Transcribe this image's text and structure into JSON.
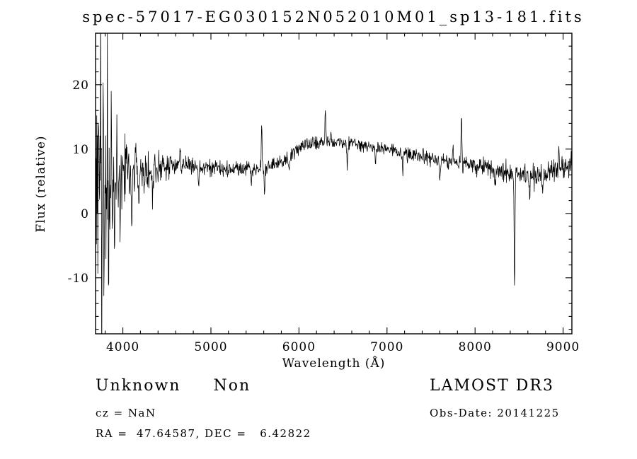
{
  "chart_data": {
    "type": "line",
    "title": "spec-57017-EG030152N052010M01_sp13-181.fits",
    "xlabel": "Wavelength (Å)",
    "ylabel": "Flux (relative)",
    "xlim": [
      3690,
      9100
    ],
    "ylim": [
      -18.7,
      28
    ],
    "x_major_ticks": [
      4000,
      5000,
      6000,
      7000,
      8000,
      9000
    ],
    "x_minor_step": 200,
    "y_major_ticks": [
      -10,
      0,
      10,
      20
    ],
    "y_minor_step": 2,
    "grid": false,
    "legend": "none",
    "line_color": "#000000",
    "series": [
      {
        "name": "spectrum",
        "color": "#000000",
        "continuum_anchors": [
          [
            3690,
            1
          ],
          [
            3720,
            4
          ],
          [
            3760,
            7
          ],
          [
            3800,
            7
          ],
          [
            3850,
            5
          ],
          [
            3900,
            5
          ],
          [
            3950,
            5.5
          ],
          [
            4000,
            5.5
          ],
          [
            4100,
            6
          ],
          [
            4250,
            6.5
          ],
          [
            4400,
            7
          ],
          [
            4600,
            7.5
          ],
          [
            4800,
            7.5
          ],
          [
            5000,
            7
          ],
          [
            5200,
            6.8
          ],
          [
            5400,
            7
          ],
          [
            5600,
            7
          ],
          [
            5800,
            7.8
          ],
          [
            5950,
            9.5
          ],
          [
            6100,
            10.8
          ],
          [
            6250,
            11
          ],
          [
            6450,
            11
          ],
          [
            6600,
            10.8
          ],
          [
            6800,
            10.3
          ],
          [
            7000,
            10
          ],
          [
            7200,
            9.3
          ],
          [
            7400,
            8.8
          ],
          [
            7600,
            8.3
          ],
          [
            7800,
            8
          ],
          [
            8000,
            7.3
          ],
          [
            8200,
            7
          ],
          [
            8400,
            6.5
          ],
          [
            8600,
            5.8
          ],
          [
            8750,
            5.5
          ],
          [
            8900,
            6.8
          ],
          [
            9100,
            7.8
          ]
        ],
        "noise_amplitude_anchors": [
          [
            3690,
            15
          ],
          [
            3750,
            16
          ],
          [
            3800,
            14
          ],
          [
            3860,
            11
          ],
          [
            3920,
            8
          ],
          [
            3980,
            6
          ],
          [
            4050,
            4.5
          ],
          [
            4150,
            3
          ],
          [
            4300,
            2.2
          ],
          [
            4500,
            1.6
          ],
          [
            4800,
            1.3
          ],
          [
            5200,
            1.2
          ],
          [
            5600,
            1.1
          ],
          [
            6000,
            1.0
          ],
          [
            6500,
            0.9
          ],
          [
            7000,
            0.85
          ],
          [
            7400,
            1.0
          ],
          [
            7800,
            1.1
          ],
          [
            8200,
            1.3
          ],
          [
            8600,
            1.6
          ],
          [
            8900,
            1.9
          ],
          [
            9100,
            2.3
          ]
        ],
        "spikes": [
          {
            "wavelength": 3728,
            "delta_flux": 12
          },
          {
            "wavelength": 3745,
            "delta_flux": 18
          },
          {
            "wavelength": 3762,
            "delta_flux": -22
          },
          {
            "wavelength": 3775,
            "delta_flux": 20
          },
          {
            "wavelength": 3790,
            "delta_flux": -16
          },
          {
            "wavelength": 3820,
            "delta_flux": 11
          },
          {
            "wavelength": 3840,
            "delta_flux": -12
          },
          {
            "wavelength": 3870,
            "delta_flux": 13
          },
          {
            "wavelength": 3905,
            "delta_flux": -10
          },
          {
            "wavelength": 3935,
            "delta_flux": 9
          },
          {
            "wavelength": 3968,
            "delta_flux": -9
          },
          {
            "wavelength": 4046,
            "delta_flux": 6
          },
          {
            "wavelength": 4101,
            "delta_flux": -7
          },
          {
            "wavelength": 4150,
            "delta_flux": 5
          },
          {
            "wavelength": 4180,
            "delta_flux": -5
          },
          {
            "wavelength": 4340,
            "delta_flux": -4
          },
          {
            "wavelength": 4650,
            "delta_flux": 3
          },
          {
            "wavelength": 4861,
            "delta_flux": -3
          },
          {
            "wavelength": 5460,
            "delta_flux": -3
          },
          {
            "wavelength": 5577,
            "delta_flux": 6.5
          },
          {
            "wavelength": 5610,
            "delta_flux": -4.5
          },
          {
            "wavelength": 5890,
            "delta_flux": -2.5
          },
          {
            "wavelength": 6300,
            "delta_flux": 5.5
          },
          {
            "wavelength": 6363,
            "delta_flux": 2
          },
          {
            "wavelength": 6550,
            "delta_flux": -4
          },
          {
            "wavelength": 6870,
            "delta_flux": -3
          },
          {
            "wavelength": 7180,
            "delta_flux": -3
          },
          {
            "wavelength": 7600,
            "delta_flux": -3.5
          },
          {
            "wavelength": 7750,
            "delta_flux": 3
          },
          {
            "wavelength": 7846,
            "delta_flux": 8.5
          },
          {
            "wavelength": 8230,
            "delta_flux": -3
          },
          {
            "wavelength": 8449,
            "delta_flux": -18.5
          },
          {
            "wavelength": 8620,
            "delta_flux": -4
          },
          {
            "wavelength": 8770,
            "delta_flux": -3
          },
          {
            "wavelength": 8950,
            "delta_flux": 3
          }
        ]
      }
    ]
  },
  "annotations": {
    "class_main": "Unknown",
    "class_sub": "Non",
    "survey": "LAMOST DR3",
    "cz": "cz = NaN",
    "obs_date": "Obs-Date: 20141225",
    "coords": "RA =  47.64587, DEC =   6.42822"
  }
}
